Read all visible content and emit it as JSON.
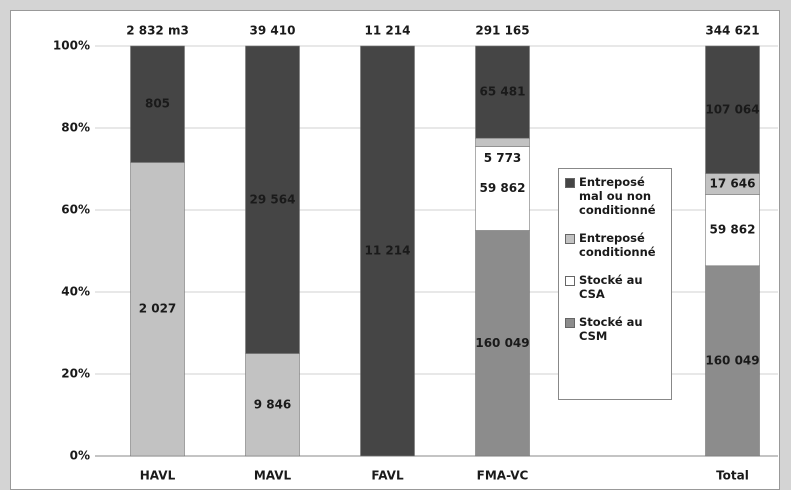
{
  "chart_data": {
    "type": "stacked-bar-100",
    "categories": [
      "HAVL",
      "MAVL",
      "FAVL",
      "FMA-VC",
      null,
      "Total"
    ],
    "totals": [
      "2 832 m3",
      "39 410",
      "11 214",
      "291 165",
      null,
      "344 621"
    ],
    "series": [
      {
        "name": "Stocké au CSM",
        "color": "#8c8c8c",
        "values": [
          null,
          null,
          null,
          55,
          null,
          46.4
        ],
        "segment_labels": [
          null,
          null,
          null,
          "160 049",
          null,
          "160 049"
        ]
      },
      {
        "name": "Stocké au CSA",
        "color": "#ffffff",
        "values": [
          null,
          null,
          null,
          20.5,
          null,
          17.4
        ],
        "segment_labels": [
          null,
          null,
          null,
          "59 862",
          null,
          "59 862"
        ]
      },
      {
        "name": "Entreposé conditionné",
        "color": "#c2c2c2",
        "values": [
          71.6,
          25,
          null,
          2,
          null,
          5.1
        ],
        "segment_labels": [
          "2 027",
          "9 846",
          null,
          "5 773",
          null,
          "17 646"
        ]
      },
      {
        "name": "Entreposé mal ou non conditionné",
        "color": "#454545",
        "values": [
          28.4,
          75,
          100,
          22.5,
          null,
          31.1
        ],
        "segment_labels": [
          "805",
          "29 564",
          "11 214",
          "65 481",
          null,
          "107 064"
        ]
      }
    ],
    "ylim": [
      0,
      100
    ],
    "yticks": [
      {
        "value": 0,
        "label": "0%"
      },
      {
        "value": 20,
        "label": "20%"
      },
      {
        "value": 40,
        "label": "40%"
      },
      {
        "value": 60,
        "label": "60%"
      },
      {
        "value": 80,
        "label": "80%"
      },
      {
        "value": 100,
        "label": "100%"
      }
    ],
    "grid": true
  }
}
